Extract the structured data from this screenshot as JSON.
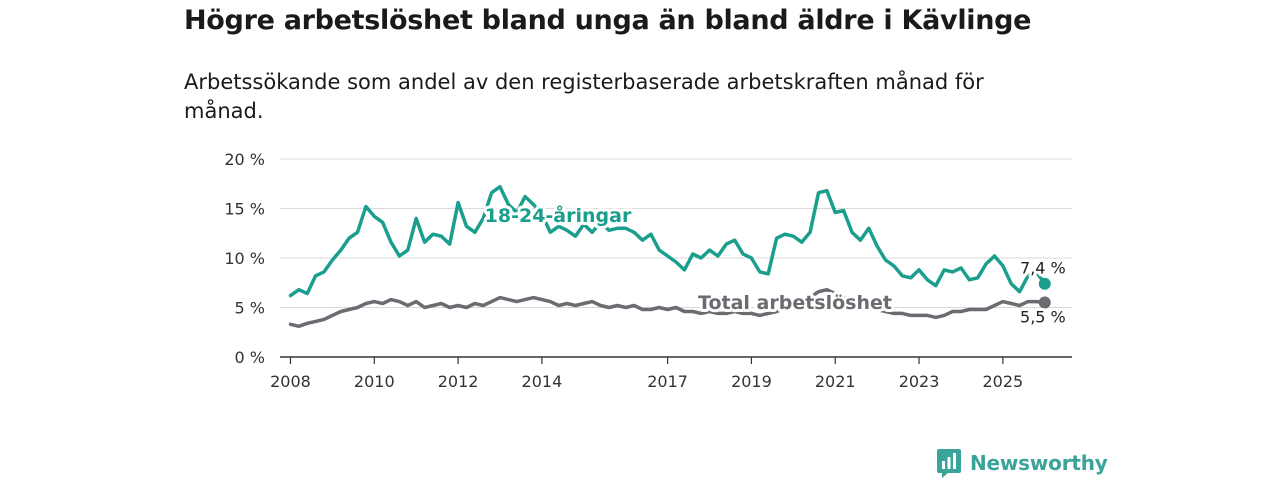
{
  "header": {
    "title": "Högre arbetslöshet bland unga än bland äldre i Kävlinge",
    "subtitle": "Arbetssökande som andel av den registerbaserade arbetskraften månad för månad."
  },
  "logo": {
    "text": "Newsworthy",
    "icon": "bar-chart-icon"
  },
  "colors": {
    "youth": "#1a9e8e",
    "total": "#6e6a71",
    "grid": "#d9d9d9",
    "axis": "#333333"
  },
  "chart_data": {
    "type": "line",
    "title": "Högre arbetslöshet bland unga än bland äldre i Kävlinge",
    "xlabel": "",
    "ylabel": "",
    "ylim": [
      0,
      20
    ],
    "xlim": [
      2007.75,
      2026.65
    ],
    "y_ticks": [
      0,
      5,
      10,
      15,
      20
    ],
    "y_tick_labels": [
      "0 %",
      "5 %",
      "10 %",
      "15 %",
      "20 %"
    ],
    "x_ticks": [
      2008,
      2010,
      2012,
      2014,
      2017,
      2019,
      2021,
      2023,
      2025
    ],
    "x_tick_labels": [
      "2008",
      "2010",
      "2012",
      "2014",
      "2017",
      "2019",
      "2021",
      "2023",
      "2025"
    ],
    "grid": true,
    "series": [
      {
        "name": "18-24-åringar",
        "label": "18-24-åringar",
        "color": "#1a9e8e",
        "last_value": 7.4,
        "end_label": "7,4 %",
        "points": [
          [
            2008.0,
            6.2
          ],
          [
            2008.2,
            6.8
          ],
          [
            2008.4,
            6.4
          ],
          [
            2008.6,
            8.2
          ],
          [
            2008.8,
            8.6
          ],
          [
            2009.0,
            9.8
          ],
          [
            2009.2,
            10.8
          ],
          [
            2009.4,
            12.0
          ],
          [
            2009.6,
            12.6
          ],
          [
            2009.8,
            15.2
          ],
          [
            2010.0,
            14.2
          ],
          [
            2010.2,
            13.6
          ],
          [
            2010.4,
            11.6
          ],
          [
            2010.6,
            10.2
          ],
          [
            2010.8,
            10.8
          ],
          [
            2011.0,
            14.0
          ],
          [
            2011.2,
            11.6
          ],
          [
            2011.4,
            12.4
          ],
          [
            2011.6,
            12.2
          ],
          [
            2011.8,
            11.4
          ],
          [
            2012.0,
            15.6
          ],
          [
            2012.2,
            13.2
          ],
          [
            2012.4,
            12.6
          ],
          [
            2012.6,
            14.0
          ],
          [
            2012.8,
            16.6
          ],
          [
            2013.0,
            17.2
          ],
          [
            2013.2,
            15.4
          ],
          [
            2013.4,
            14.6
          ],
          [
            2013.6,
            16.2
          ],
          [
            2013.8,
            15.4
          ],
          [
            2014.0,
            14.4
          ],
          [
            2014.2,
            12.6
          ],
          [
            2014.4,
            13.2
          ],
          [
            2014.6,
            12.8
          ],
          [
            2014.8,
            12.2
          ],
          [
            2015.0,
            13.4
          ],
          [
            2015.2,
            12.6
          ],
          [
            2015.4,
            13.6
          ],
          [
            2015.6,
            12.8
          ],
          [
            2015.8,
            13.0
          ],
          [
            2016.0,
            13.0
          ],
          [
            2016.2,
            12.6
          ],
          [
            2016.4,
            11.8
          ],
          [
            2016.6,
            12.4
          ],
          [
            2016.8,
            10.8
          ],
          [
            2017.0,
            10.2
          ],
          [
            2017.2,
            9.6
          ],
          [
            2017.4,
            8.8
          ],
          [
            2017.6,
            10.4
          ],
          [
            2017.8,
            10.0
          ],
          [
            2018.0,
            10.8
          ],
          [
            2018.2,
            10.2
          ],
          [
            2018.4,
            11.4
          ],
          [
            2018.6,
            11.8
          ],
          [
            2018.8,
            10.4
          ],
          [
            2019.0,
            10.0
          ],
          [
            2019.2,
            8.6
          ],
          [
            2019.4,
            8.4
          ],
          [
            2019.6,
            12.0
          ],
          [
            2019.8,
            12.4
          ],
          [
            2020.0,
            12.2
          ],
          [
            2020.2,
            11.6
          ],
          [
            2020.4,
            12.6
          ],
          [
            2020.6,
            16.6
          ],
          [
            2020.8,
            16.8
          ],
          [
            2021.0,
            14.6
          ],
          [
            2021.2,
            14.8
          ],
          [
            2021.4,
            12.6
          ],
          [
            2021.6,
            11.8
          ],
          [
            2021.8,
            13.0
          ],
          [
            2022.0,
            11.2
          ],
          [
            2022.2,
            9.8
          ],
          [
            2022.4,
            9.2
          ],
          [
            2022.6,
            8.2
          ],
          [
            2022.8,
            8.0
          ],
          [
            2023.0,
            8.8
          ],
          [
            2023.2,
            7.8
          ],
          [
            2023.4,
            7.2
          ],
          [
            2023.6,
            8.8
          ],
          [
            2023.8,
            8.6
          ],
          [
            2024.0,
            9.0
          ],
          [
            2024.2,
            7.8
          ],
          [
            2024.4,
            8.0
          ],
          [
            2024.6,
            9.4
          ],
          [
            2024.8,
            10.2
          ],
          [
            2025.0,
            9.2
          ],
          [
            2025.2,
            7.4
          ],
          [
            2025.4,
            6.6
          ],
          [
            2025.6,
            8.2
          ],
          [
            2025.8,
            8.6
          ],
          [
            2026.0,
            7.4
          ]
        ]
      },
      {
        "name": "Total arbetslöshet",
        "label": "Total arbetslöshet",
        "color": "#6e6a71",
        "last_value": 5.5,
        "end_label": "5,5 %",
        "points": [
          [
            2008.0,
            3.3
          ],
          [
            2008.2,
            3.1
          ],
          [
            2008.4,
            3.4
          ],
          [
            2008.6,
            3.6
          ],
          [
            2008.8,
            3.8
          ],
          [
            2009.0,
            4.2
          ],
          [
            2009.2,
            4.6
          ],
          [
            2009.4,
            4.8
          ],
          [
            2009.6,
            5.0
          ],
          [
            2009.8,
            5.4
          ],
          [
            2010.0,
            5.6
          ],
          [
            2010.2,
            5.4
          ],
          [
            2010.4,
            5.8
          ],
          [
            2010.6,
            5.6
          ],
          [
            2010.8,
            5.2
          ],
          [
            2011.0,
            5.6
          ],
          [
            2011.2,
            5.0
          ],
          [
            2011.4,
            5.2
          ],
          [
            2011.6,
            5.4
          ],
          [
            2011.8,
            5.0
          ],
          [
            2012.0,
            5.2
          ],
          [
            2012.2,
            5.0
          ],
          [
            2012.4,
            5.4
          ],
          [
            2012.6,
            5.2
          ],
          [
            2012.8,
            5.6
          ],
          [
            2013.0,
            6.0
          ],
          [
            2013.2,
            5.8
          ],
          [
            2013.4,
            5.6
          ],
          [
            2013.6,
            5.8
          ],
          [
            2013.8,
            6.0
          ],
          [
            2014.0,
            5.8
          ],
          [
            2014.2,
            5.6
          ],
          [
            2014.4,
            5.2
          ],
          [
            2014.6,
            5.4
          ],
          [
            2014.8,
            5.2
          ],
          [
            2015.0,
            5.4
          ],
          [
            2015.2,
            5.6
          ],
          [
            2015.4,
            5.2
          ],
          [
            2015.6,
            5.0
          ],
          [
            2015.8,
            5.2
          ],
          [
            2016.0,
            5.0
          ],
          [
            2016.2,
            5.2
          ],
          [
            2016.4,
            4.8
          ],
          [
            2016.6,
            4.8
          ],
          [
            2016.8,
            5.0
          ],
          [
            2017.0,
            4.8
          ],
          [
            2017.2,
            5.0
          ],
          [
            2017.4,
            4.6
          ],
          [
            2017.6,
            4.6
          ],
          [
            2017.8,
            4.4
          ],
          [
            2018.0,
            4.6
          ],
          [
            2018.2,
            4.4
          ],
          [
            2018.4,
            4.4
          ],
          [
            2018.6,
            4.6
          ],
          [
            2018.8,
            4.4
          ],
          [
            2019.0,
            4.4
          ],
          [
            2019.2,
            4.2
          ],
          [
            2019.4,
            4.4
          ],
          [
            2019.6,
            4.6
          ],
          [
            2019.8,
            5.0
          ],
          [
            2020.0,
            5.4
          ],
          [
            2020.2,
            5.8
          ],
          [
            2020.4,
            6.0
          ],
          [
            2020.6,
            6.6
          ],
          [
            2020.8,
            6.8
          ],
          [
            2021.0,
            6.4
          ],
          [
            2021.2,
            6.0
          ],
          [
            2021.4,
            5.6
          ],
          [
            2021.6,
            5.4
          ],
          [
            2021.8,
            5.0
          ],
          [
            2022.0,
            4.8
          ],
          [
            2022.2,
            4.6
          ],
          [
            2022.4,
            4.4
          ],
          [
            2022.6,
            4.4
          ],
          [
            2022.8,
            4.2
          ],
          [
            2023.0,
            4.2
          ],
          [
            2023.2,
            4.2
          ],
          [
            2023.4,
            4.0
          ],
          [
            2023.6,
            4.2
          ],
          [
            2023.8,
            4.6
          ],
          [
            2024.0,
            4.6
          ],
          [
            2024.2,
            4.8
          ],
          [
            2024.4,
            4.8
          ],
          [
            2024.6,
            4.8
          ],
          [
            2024.8,
            5.2
          ],
          [
            2025.0,
            5.6
          ],
          [
            2025.2,
            5.4
          ],
          [
            2025.4,
            5.2
          ],
          [
            2025.6,
            5.6
          ],
          [
            2025.8,
            5.6
          ],
          [
            2026.0,
            5.5
          ]
        ]
      }
    ]
  }
}
